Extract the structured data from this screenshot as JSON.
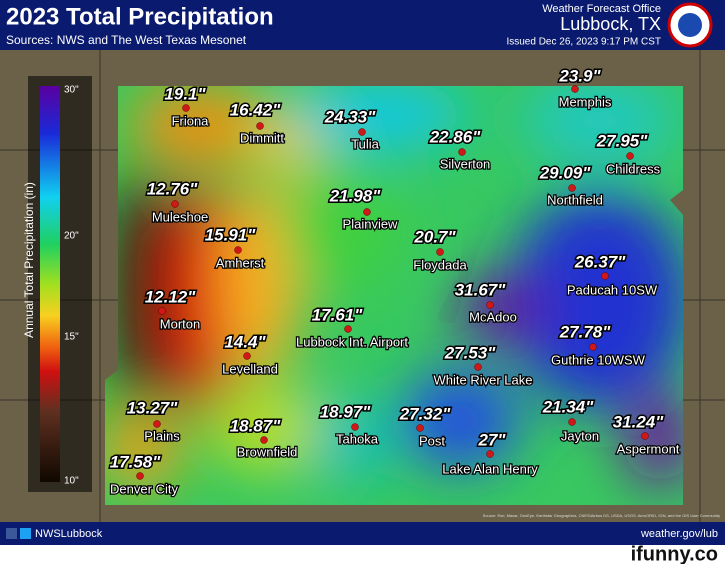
{
  "header": {
    "title": "2023 Total Precipitation",
    "sources": "Sources: NWS and The West Texas Mesonet",
    "office": "Weather Forecast Office",
    "location": "Lubbock, TX",
    "issued": "Issued Dec 26, 2023 9:17 PM CST"
  },
  "legend": {
    "title": "Annual Total Precipitation (in)",
    "ticks": [
      "30\"",
      "20\"",
      "15\"",
      "10\""
    ]
  },
  "stations": [
    {
      "value": "19.1\"",
      "name": "Friona"
    },
    {
      "value": "16.42\"",
      "name": "Dimmitt"
    },
    {
      "value": "24.33\"",
      "name": "Tulia"
    },
    {
      "value": "22.86\"",
      "name": "Silverton"
    },
    {
      "value": "23.9\"",
      "name": "Memphis"
    },
    {
      "value": "27.95\"",
      "name": "Childress"
    },
    {
      "value": "29.09\"",
      "name": "Northfield"
    },
    {
      "value": "12.76\"",
      "name": "Muleshoe"
    },
    {
      "value": "21.98\"",
      "name": "Plainview"
    },
    {
      "value": "15.91\"",
      "name": "Amherst"
    },
    {
      "value": "20.7\"",
      "name": "Floydada"
    },
    {
      "value": "26.37\"",
      "name": "Paducah 10SW"
    },
    {
      "value": "12.12\"",
      "name": "Morton"
    },
    {
      "value": "31.67\"",
      "name": "McAdoo"
    },
    {
      "value": "17.61\"",
      "name": "Lubbock Int. Airport"
    },
    {
      "value": "14.4\"",
      "name": "Levelland"
    },
    {
      "value": "27.78\"",
      "name": "Guthrie 10WSW"
    },
    {
      "value": "27.53\"",
      "name": "White River Lake"
    },
    {
      "value": "13.27\"",
      "name": "Plains"
    },
    {
      "value": "18.87\"",
      "name": "Brownfield"
    },
    {
      "value": "18.97\"",
      "name": "Tahoka"
    },
    {
      "value": "27.32\"",
      "name": "Post"
    },
    {
      "value": "27\"",
      "name": "Lake Alan Henry"
    },
    {
      "value": "21.34\"",
      "name": "Jayton"
    },
    {
      "value": "31.24\"",
      "name": "Aspermont"
    },
    {
      "value": "17.58\"",
      "name": "Denver City"
    }
  ],
  "footer": {
    "social": "NWSLubbock",
    "website": "weather.gov/lub",
    "map_source": "Source: Esri, Maxar, GeoEye, Earthstar Geographics, CNES/Airbus DS, USDA, USGS, AeroGRID, IGN, and the GIS User Community",
    "watermark": "ifunny.co"
  }
}
